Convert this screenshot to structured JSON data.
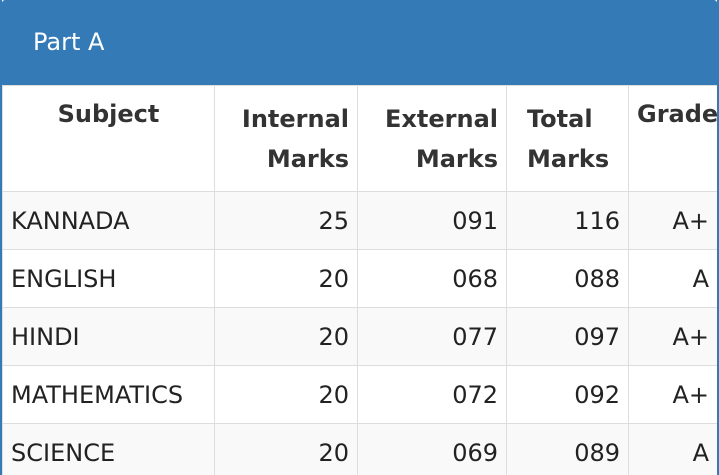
{
  "header": {
    "title": "Part A"
  },
  "table": {
    "columns": [
      "Subject",
      "Internal Marks",
      "External Marks",
      "Total Marks",
      "Grade"
    ],
    "rows": [
      [
        "KANNADA",
        "25",
        "091",
        "116",
        "A+"
      ],
      [
        "ENGLISH",
        "20",
        "068",
        "088",
        "A"
      ],
      [
        "HINDI",
        "20",
        "077",
        "097",
        "A+"
      ],
      [
        "MATHEMATICS",
        "20",
        "072",
        "092",
        "A+"
      ],
      [
        "SCIENCE",
        "20",
        "069",
        "089",
        "A"
      ]
    ]
  }
}
